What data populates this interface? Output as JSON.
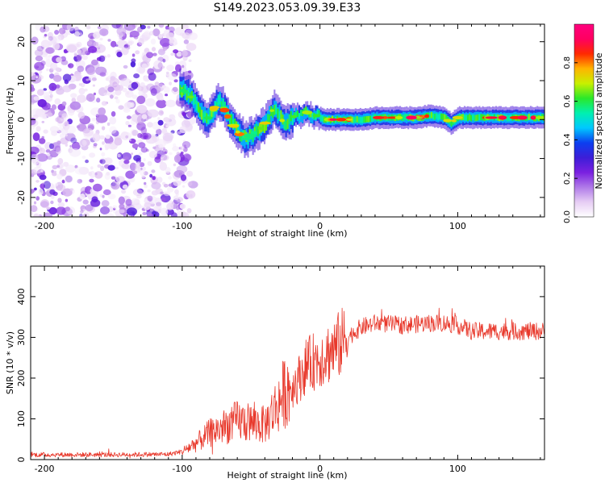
{
  "figure": {
    "title": "S149.2023.053.09.39.E33"
  },
  "chart_data": [
    {
      "type": "heatmap",
      "xlabel": "Height of straight line (km)",
      "ylabel": "Frequency (Hz)",
      "xlim": [
        -210,
        163
      ],
      "ylim": [
        -25,
        24.5
      ],
      "x_ticks": [
        -200,
        -100,
        0,
        100
      ],
      "y_ticks": [
        -20,
        -10,
        0,
        10,
        20
      ],
      "colorbar": {
        "label": "Normalized spectral amplitude",
        "range": [
          0,
          1
        ],
        "ticks": [
          0.0,
          0.2,
          0.4,
          0.6,
          0.8
        ],
        "tick_labels": [
          "0.0",
          "0.2",
          "0.4",
          "0.6",
          "0.8"
        ],
        "colormap": [
          "#ffffff",
          "#e6cdf4",
          "#b07ae8",
          "#7a20e0",
          "#3d1ed8",
          "#0c3ff0",
          "#00c8ff",
          "#00f0b0",
          "#2ae82a",
          "#c8f000",
          "#ffb400",
          "#ff2a00",
          "#ff0060",
          "#ff007f"
        ]
      },
      "signal_trace": {
        "x": [
          -102,
          -97,
          -92,
          -87,
          -82,
          -78,
          -74,
          -70,
          -66,
          -62,
          -58,
          -54,
          -50,
          -46,
          -42,
          -38,
          -34,
          -30,
          -26,
          -22,
          -18,
          -14,
          -10,
          -6,
          -2,
          2,
          10,
          20,
          30,
          40,
          50,
          60,
          70,
          80,
          90,
          95,
          100,
          110,
          120,
          130,
          140,
          150,
          163
        ],
        "y": [
          8,
          7,
          5,
          2,
          0,
          2,
          5,
          3,
          0,
          -2,
          -4,
          -5,
          -4,
          -3,
          -2,
          0,
          3,
          1,
          -1,
          0,
          1,
          1,
          2,
          1,
          1,
          0,
          0,
          0,
          0,
          0.5,
          0.5,
          0.5,
          0.5,
          1,
          0.5,
          -1,
          0.5,
          0.5,
          0.5,
          0.5,
          0.5,
          0.5,
          0.5
        ]
      },
      "noise_region": {
        "x_from": -210,
        "x_to": -100
      }
    },
    {
      "type": "line",
      "xlabel": "Height of straight line (km)",
      "ylabel": "SNR (10 * v/v)",
      "xlim": [
        -210,
        163
      ],
      "ylim": [
        0,
        475
      ],
      "x_ticks": [
        -200,
        -100,
        0,
        100
      ],
      "y_ticks": [
        0,
        100,
        200,
        300,
        400
      ],
      "series": [
        {
          "color": "#e8382b",
          "x": [
            -210,
            -150,
            -110,
            -100,
            -90,
            -80,
            -70,
            -60,
            -50,
            -40,
            -30,
            -25,
            -20,
            -15,
            -10,
            0,
            10,
            20,
            30,
            40,
            60,
            80,
            90,
            100,
            110,
            120,
            140,
            163
          ],
          "y": [
            12,
            12,
            13,
            20,
            40,
            65,
            80,
            95,
            90,
            85,
            140,
            170,
            180,
            200,
            230,
            250,
            270,
            300,
            325,
            335,
            330,
            335,
            335,
            330,
            315,
            315,
            315,
            315
          ]
        }
      ]
    }
  ]
}
